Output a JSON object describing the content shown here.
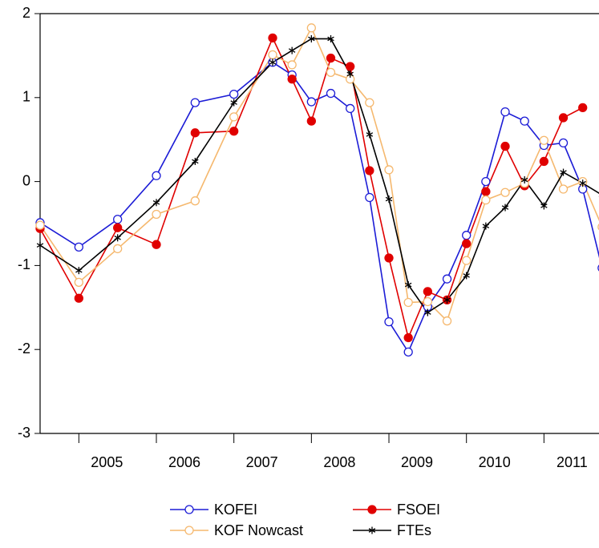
{
  "chart_data": {
    "type": "line",
    "x": [
      2004.5,
      2005.0,
      2005.5,
      2006.0,
      2006.5,
      2007.0,
      2007.5,
      2007.75,
      2008.0,
      2008.25,
      2008.5,
      2008.75,
      2009.0,
      2009.25,
      2009.5,
      2009.75,
      2010.0,
      2010.25,
      2010.5,
      2010.75,
      2011.0,
      2011.25,
      2011.5,
      2011.75
    ],
    "series": [
      {
        "name": "KOFEI",
        "color": "#1c1cd6",
        "marker": "open-circle",
        "values": [
          -0.49,
          -0.78,
          -0.45,
          0.07,
          0.94,
          1.04,
          1.42,
          1.27,
          0.95,
          1.05,
          0.87,
          -0.19,
          -1.67,
          -2.03,
          -1.49,
          -1.16,
          -0.64,
          0.0,
          0.83,
          0.72,
          0.43,
          0.46,
          -0.09,
          -1.03
        ]
      },
      {
        "name": "FSOEI",
        "color": "#e00000",
        "marker": "filled-circle",
        "values": [
          -0.56,
          -1.39,
          -0.55,
          -0.75,
          0.58,
          0.6,
          1.71,
          1.22,
          0.72,
          1.47,
          1.37,
          0.13,
          -0.91,
          -1.86,
          -1.31,
          -1.41,
          -0.74,
          -0.12,
          0.42,
          -0.05,
          0.24,
          0.76,
          0.88,
          null
        ]
      },
      {
        "name": "KOF Nowcast",
        "color": "#f5b86e",
        "marker": "open-circle",
        "values": [
          -0.52,
          -1.2,
          -0.8,
          -0.39,
          -0.23,
          0.77,
          1.51,
          1.39,
          1.83,
          1.3,
          1.22,
          0.94,
          0.14,
          -1.44,
          -1.43,
          -1.66,
          -0.94,
          -0.22,
          -0.13,
          -0.02,
          0.49,
          -0.09,
          0.0,
          -0.54
        ]
      },
      {
        "name": "FTEs",
        "color": "#000000",
        "marker": "asterisk",
        "values": [
          -0.76,
          -1.06,
          -0.67,
          -0.25,
          0.24,
          0.94,
          1.42,
          1.56,
          1.7,
          1.7,
          1.28,
          0.56,
          -0.21,
          -1.23,
          -1.56,
          -1.41,
          -1.12,
          -0.53,
          -0.31,
          0.02,
          -0.29,
          0.11,
          -0.02,
          -0.16
        ]
      }
    ],
    "xlim": [
      2004.5,
      2011.71
    ],
    "xticks": [
      2005,
      2006,
      2007,
      2008,
      2009,
      2010,
      2011
    ],
    "ylim": [
      -3,
      2
    ],
    "yticks": [
      -3,
      -2,
      -1,
      0,
      1,
      2
    ]
  }
}
